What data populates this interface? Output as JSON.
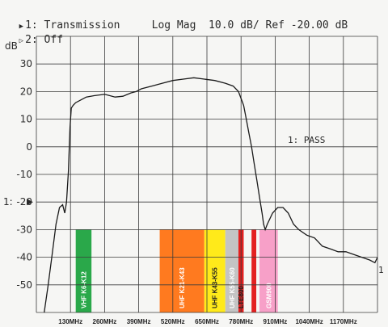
{
  "header": {
    "line1": "1: Transmission     Log Mag  10.0 dB/ Ref -20.00 dB",
    "line2": "2: Off"
  },
  "chart_data": {
    "type": "line",
    "title": "",
    "ylabel": "dB",
    "xlabel": "",
    "ylim": [
      -60,
      40
    ],
    "xlim": [
      0,
      1300
    ],
    "grid": true,
    "yticks": [
      30,
      20,
      10,
      0,
      -10,
      -20,
      -30,
      -40,
      -50
    ],
    "ytick_labels": [
      "30",
      "20",
      "10",
      "0",
      "-10",
      "-20",
      "-30",
      "-40",
      "-50"
    ],
    "ref_marker_label": "1:",
    "ref_value": -20,
    "xtick_labels": [
      "130MHz",
      "260MHz",
      "390MHz",
      "520MHz",
      "650MHz",
      "780MHz",
      "910MHz",
      "1040MHz",
      "1170MHz"
    ],
    "xtick_values": [
      130,
      260,
      390,
      520,
      650,
      780,
      910,
      1040,
      1170
    ],
    "annotation": "1: PASS",
    "trace_end_label": "1",
    "series": [
      {
        "x": [
          30,
          45,
          60,
          75,
          88,
          100,
          108,
          115,
          122,
          128,
          133,
          140,
          150,
          170,
          190,
          220,
          260,
          300,
          330,
          360,
          380,
          400,
          440,
          480,
          520,
          560,
          600,
          640,
          680,
          720,
          750,
          770,
          790,
          800,
          810,
          820,
          830,
          840,
          850,
          860,
          866,
          872,
          880,
          900,
          920,
          940,
          960,
          980,
          1000,
          1030,
          1060,
          1090,
          1120,
          1150,
          1180,
          1210,
          1240,
          1270,
          1290,
          1300
        ],
        "y": [
          -60,
          -50,
          -39,
          -28,
          -22,
          -21,
          -24,
          -20,
          -9,
          7,
          14,
          15,
          16,
          17,
          18,
          18.5,
          19,
          18,
          18.3,
          19.5,
          20,
          21,
          22,
          23,
          24,
          24.5,
          25,
          24.5,
          24,
          23,
          22,
          20,
          15,
          10,
          5,
          0,
          -6,
          -12,
          -18,
          -24,
          -28,
          -30,
          -28,
          -24,
          -22,
          -22,
          -24,
          -28,
          -30,
          -32,
          -33,
          -36,
          -37,
          -38,
          -38,
          -39,
          -40,
          -41,
          -42,
          -40
        ]
      }
    ],
    "bands": [
      {
        "label": "VHF K6-K12",
        "x1": 150,
        "x2": 210,
        "color": "#2aa84a",
        "text_color": "#ffffff"
      },
      {
        "label": "UHF K21-K43",
        "x1": 470,
        "x2": 640,
        "color": "#ff7a1f",
        "text_color": "#ffffff"
      },
      {
        "label": "UHF K43-K55",
        "x1": 640,
        "x2": 720,
        "color": "#ffea1a",
        "text_color": "#222222"
      },
      {
        "label": "UHF K55-K60",
        "x1": 720,
        "x2": 770,
        "color": "#c4c4c4",
        "text_color": "#ffffff"
      },
      {
        "label": "LTE800",
        "x1": 770,
        "x2": 790,
        "color": "#e32020",
        "text_color": "#111111"
      },
      {
        "label": "",
        "x1": 820,
        "x2": 838,
        "color": "#e32020",
        "text_color": "#111111"
      },
      {
        "label": "GSM900",
        "x1": 850,
        "x2": 920,
        "color": "#f7a0c8",
        "text_color": "#ffffff"
      }
    ]
  }
}
